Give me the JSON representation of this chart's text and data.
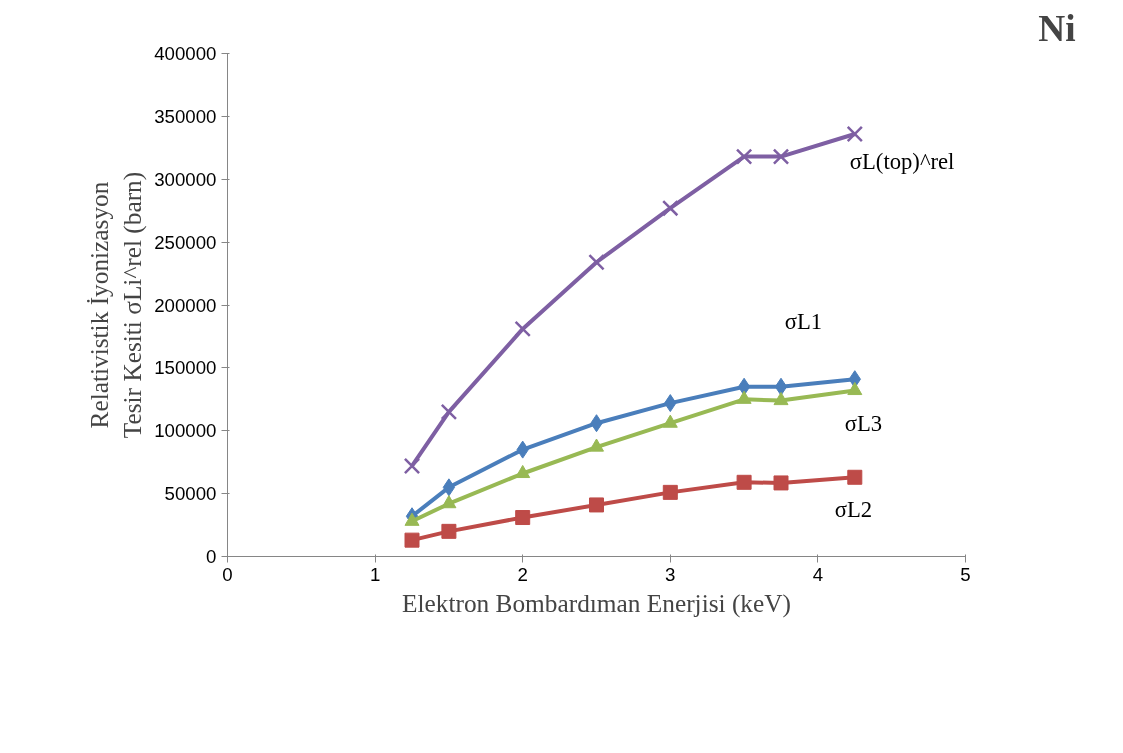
{
  "chart_data": {
    "type": "line",
    "title": "Ni",
    "xlabel": "Elektron Bombardıman Enerjisi (keV)",
    "ylabel": "Relativistik İyonizasyon\nTesir Kesiti σLi^rel (barn)",
    "x": [
      1.25,
      1.5,
      2,
      2.5,
      3,
      3.5,
      3.75,
      4.25
    ],
    "series": [
      {
        "name": "σL(top)^rel",
        "color": "#7e5fa3",
        "marker": "cross",
        "values": [
          72000,
          115000,
          181000,
          234000,
          277000,
          318000,
          318000,
          336000
        ]
      },
      {
        "name": "σL1",
        "color": "#4a7ebb",
        "marker": "diamond",
        "values": [
          32000,
          55000,
          85000,
          106000,
          122000,
          135000,
          135000,
          141000
        ]
      },
      {
        "name": "σL3",
        "color": "#98b954",
        "marker": "triangle",
        "values": [
          28000,
          42000,
          66000,
          87000,
          106000,
          125000,
          124000,
          132000
        ]
      },
      {
        "name": "σL2",
        "color": "#be4b48",
        "marker": "square",
        "values": [
          13000,
          20000,
          31000,
          41000,
          51000,
          59000,
          58500,
          63000
        ]
      }
    ],
    "xlim": [
      0,
      5
    ],
    "xticks": [
      0,
      1,
      2,
      3,
      4,
      5
    ],
    "ylim": [
      0,
      400000
    ],
    "yticks": [
      0,
      50000,
      100000,
      150000,
      200000,
      250000,
      300000,
      350000,
      400000
    ],
    "grid": false
  }
}
